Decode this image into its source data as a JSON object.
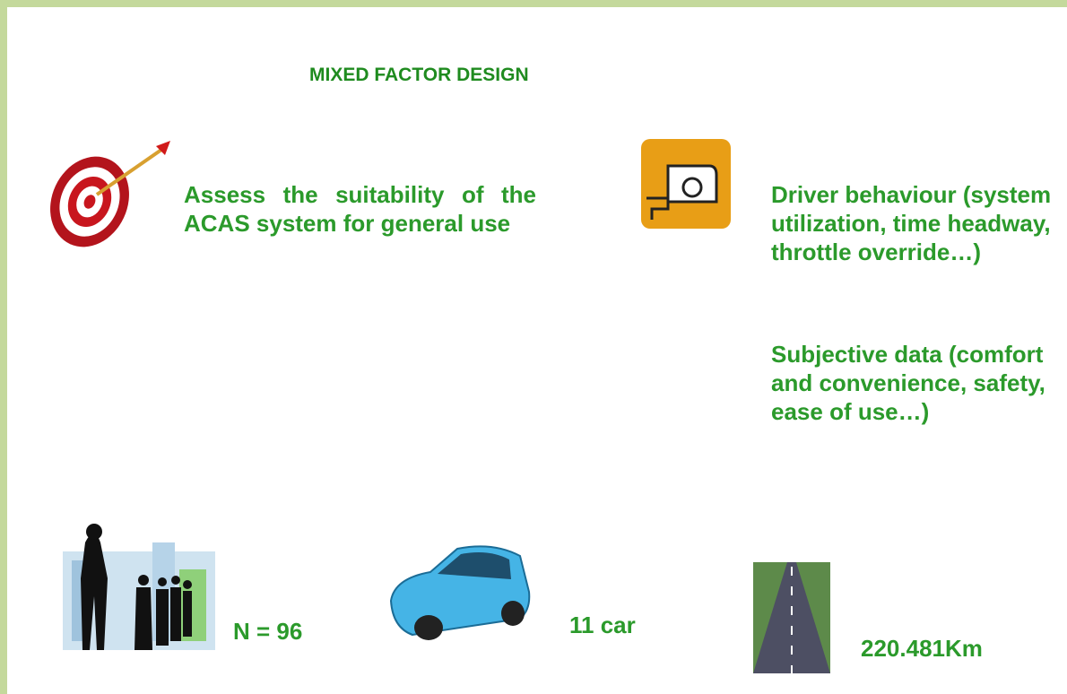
{
  "title": "MIXED FACTOR DESIGN",
  "objective": "Assess the suitability of the ACAS system for general use",
  "measures": [
    "Driver behaviour (system utilization, time headway, throttle override…)",
    "Subjective data (comfort and convenience, safety, ease of use…)"
  ],
  "sample": {
    "participants": "N = 96",
    "vehicles": "11 car",
    "distance": "220.481Km"
  }
}
